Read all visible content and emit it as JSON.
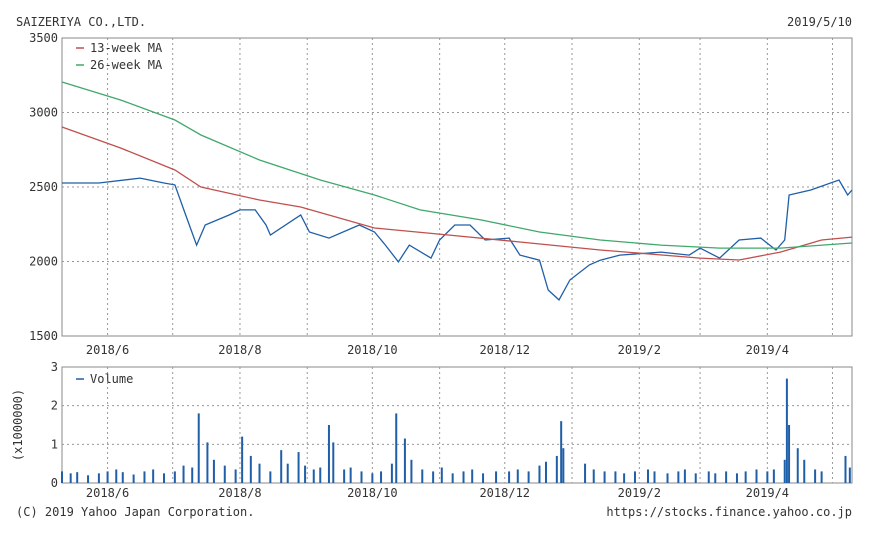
{
  "header": {
    "company": "SAIZERIYA CO.,LTD.",
    "date": "2019/5/10"
  },
  "footer": {
    "copyright": "(C) 2019 Yahoo Japan Corporation.",
    "url": "https://stocks.finance.yahoo.co.jp"
  },
  "chart_data": [
    {
      "type": "line",
      "title": "SAIZERIYA CO.,LTD.",
      "xlim": [
        "2018-05-11",
        "2019-05-10"
      ],
      "ylim": [
        1500,
        3500
      ],
      "yticks": [
        "3500",
        "3000",
        "2500",
        "2000",
        "1500"
      ],
      "xticks": [
        {
          "date": "2018-06-01",
          "label": "2018/6"
        },
        {
          "date": "2018-08-01",
          "label": "2018/8"
        },
        {
          "date": "2018-10-01",
          "label": "2018/10"
        },
        {
          "date": "2018-12-01",
          "label": "2018/12"
        },
        {
          "date": "2019-02-01",
          "label": "2019/2"
        },
        {
          "date": "2019-04-01",
          "label": "2019/4"
        }
      ],
      "grid": true,
      "legend_position": "top-left",
      "series": [
        {
          "name": "",
          "color": "#1f5fa8",
          "x": [
            "2018-05-11",
            "2018-05-28",
            "2018-06-16",
            "2018-06-27",
            "2018-07-02",
            "2018-07-07",
            "2018-07-12",
            "2018-07-16",
            "2018-07-27",
            "2018-08-01",
            "2018-08-08",
            "2018-08-13",
            "2018-08-15",
            "2018-08-29",
            "2018-09-02",
            "2018-09-11",
            "2018-09-25",
            "2018-10-02",
            "2018-10-07",
            "2018-10-13",
            "2018-10-18",
            "2018-10-28",
            "2018-11-01",
            "2018-11-08",
            "2018-11-15",
            "2018-11-22",
            "2018-12-03",
            "2018-12-08",
            "2018-12-17",
            "2018-12-21",
            "2018-12-26",
            "2018-12-31",
            "2019-01-09",
            "2019-01-14",
            "2019-01-23",
            "2019-02-11",
            "2019-02-24",
            "2019-03-01",
            "2019-03-10",
            "2019-03-19",
            "2019-03-29",
            "2019-04-05",
            "2019-04-09",
            "2019-04-11",
            "2019-04-21",
            "2019-05-04",
            "2019-05-08",
            "2019-05-10"
          ],
          "y": [
            2527,
            2527,
            2560,
            2527,
            2514,
            2312,
            2110,
            2245,
            2312,
            2346,
            2346,
            2245,
            2178,
            2312,
            2198,
            2157,
            2245,
            2198,
            2110,
            1997,
            2110,
            2023,
            2144,
            2245,
            2245,
            2144,
            2157,
            2043,
            2009,
            1809,
            1742,
            1876,
            1977,
            2009,
            2043,
            2063,
            2043,
            2090,
            2023,
            2144,
            2157,
            2077,
            2144,
            2446,
            2480,
            2547,
            2446,
            2480
          ]
        },
        {
          "name": "13-week MA",
          "color": "#c0504d",
          "x": [
            "2018-05-11",
            "2018-06-07",
            "2018-07-02",
            "2018-07-14",
            "2018-08-10",
            "2018-08-29",
            "2018-10-02",
            "2018-11-05",
            "2018-12-08",
            "2019-01-14",
            "2019-03-01",
            "2019-03-19",
            "2019-04-07",
            "2019-04-26",
            "2019-05-10"
          ],
          "y": [
            2903,
            2762,
            2614,
            2500,
            2413,
            2366,
            2225,
            2178,
            2131,
            2077,
            2023,
            2010,
            2063,
            2144,
            2164
          ]
        },
        {
          "name": "26-week MA",
          "color": "#3fa86a",
          "x": [
            "2018-05-11",
            "2018-06-07",
            "2018-07-02",
            "2018-07-14",
            "2018-08-10",
            "2018-09-07",
            "2018-10-02",
            "2018-10-23",
            "2018-11-20",
            "2018-12-17",
            "2019-01-14",
            "2019-02-11",
            "2019-03-10",
            "2019-04-07",
            "2019-05-10"
          ],
          "y": [
            3205,
            3084,
            2950,
            2849,
            2681,
            2547,
            2446,
            2346,
            2279,
            2198,
            2144,
            2110,
            2090,
            2090,
            2124
          ]
        }
      ]
    },
    {
      "type": "bar",
      "ylabel": "(x1000000)",
      "ylim": [
        0,
        3
      ],
      "yticks": [
        "3",
        "2",
        "1",
        "0"
      ],
      "legend_position": "top-left",
      "series": [
        {
          "name": "Volume",
          "color": "#1f5fa8",
          "x": [
            "2018-05-11",
            "2018-05-15",
            "2018-05-18",
            "2018-05-23",
            "2018-05-28",
            "2018-06-01",
            "2018-06-05",
            "2018-06-08",
            "2018-06-13",
            "2018-06-18",
            "2018-06-22",
            "2018-06-27",
            "2018-07-02",
            "2018-07-06",
            "2018-07-10",
            "2018-07-13",
            "2018-07-17",
            "2018-07-20",
            "2018-07-25",
            "2018-07-30",
            "2018-08-02",
            "2018-08-06",
            "2018-08-10",
            "2018-08-15",
            "2018-08-20",
            "2018-08-23",
            "2018-08-28",
            "2018-08-31",
            "2018-09-04",
            "2018-09-07",
            "2018-09-11",
            "2018-09-13",
            "2018-09-18",
            "2018-09-21",
            "2018-09-26",
            "2018-10-01",
            "2018-10-05",
            "2018-10-10",
            "2018-10-12",
            "2018-10-16",
            "2018-10-19",
            "2018-10-24",
            "2018-10-29",
            "2018-11-02",
            "2018-11-07",
            "2018-11-12",
            "2018-11-16",
            "2018-11-21",
            "2018-11-27",
            "2018-12-03",
            "2018-12-07",
            "2018-12-12",
            "2018-12-17",
            "2018-12-20",
            "2018-12-25",
            "2018-12-27",
            "2018-12-28",
            "2019-01-07",
            "2019-01-11",
            "2019-01-16",
            "2019-01-21",
            "2019-01-25",
            "2019-01-30",
            "2019-02-05",
            "2019-02-08",
            "2019-02-14",
            "2019-02-19",
            "2019-02-22",
            "2019-02-27",
            "2019-03-05",
            "2019-03-08",
            "2019-03-13",
            "2019-03-18",
            "2019-03-22",
            "2019-03-27",
            "2019-04-01",
            "2019-04-04",
            "2019-04-09",
            "2019-04-10",
            "2019-04-11",
            "2019-04-15",
            "2019-04-18",
            "2019-04-23",
            "2019-04-26",
            "2019-05-07",
            "2019-05-09"
          ],
          "y": [
            0.3,
            0.25,
            0.28,
            0.2,
            0.25,
            0.3,
            0.35,
            0.28,
            0.22,
            0.3,
            0.35,
            0.25,
            0.3,
            0.45,
            0.4,
            1.8,
            1.05,
            0.6,
            0.45,
            0.35,
            1.2,
            0.7,
            0.5,
            0.3,
            0.85,
            0.5,
            0.8,
            0.45,
            0.35,
            0.4,
            1.5,
            1.05,
            0.35,
            0.4,
            0.3,
            0.25,
            0.3,
            0.5,
            1.8,
            1.15,
            0.6,
            0.35,
            0.3,
            0.4,
            0.25,
            0.3,
            0.35,
            0.25,
            0.3,
            0.3,
            0.35,
            0.3,
            0.45,
            0.55,
            0.7,
            1.6,
            0.9,
            0.5,
            0.35,
            0.3,
            0.3,
            0.25,
            0.3,
            0.35,
            0.3,
            0.25,
            0.3,
            0.35,
            0.25,
            0.3,
            0.25,
            0.3,
            0.25,
            0.3,
            0.35,
            0.3,
            0.35,
            0.6,
            2.7,
            1.5,
            0.9,
            0.6,
            0.35,
            0.3,
            0.7,
            0.4
          ]
        }
      ]
    }
  ]
}
